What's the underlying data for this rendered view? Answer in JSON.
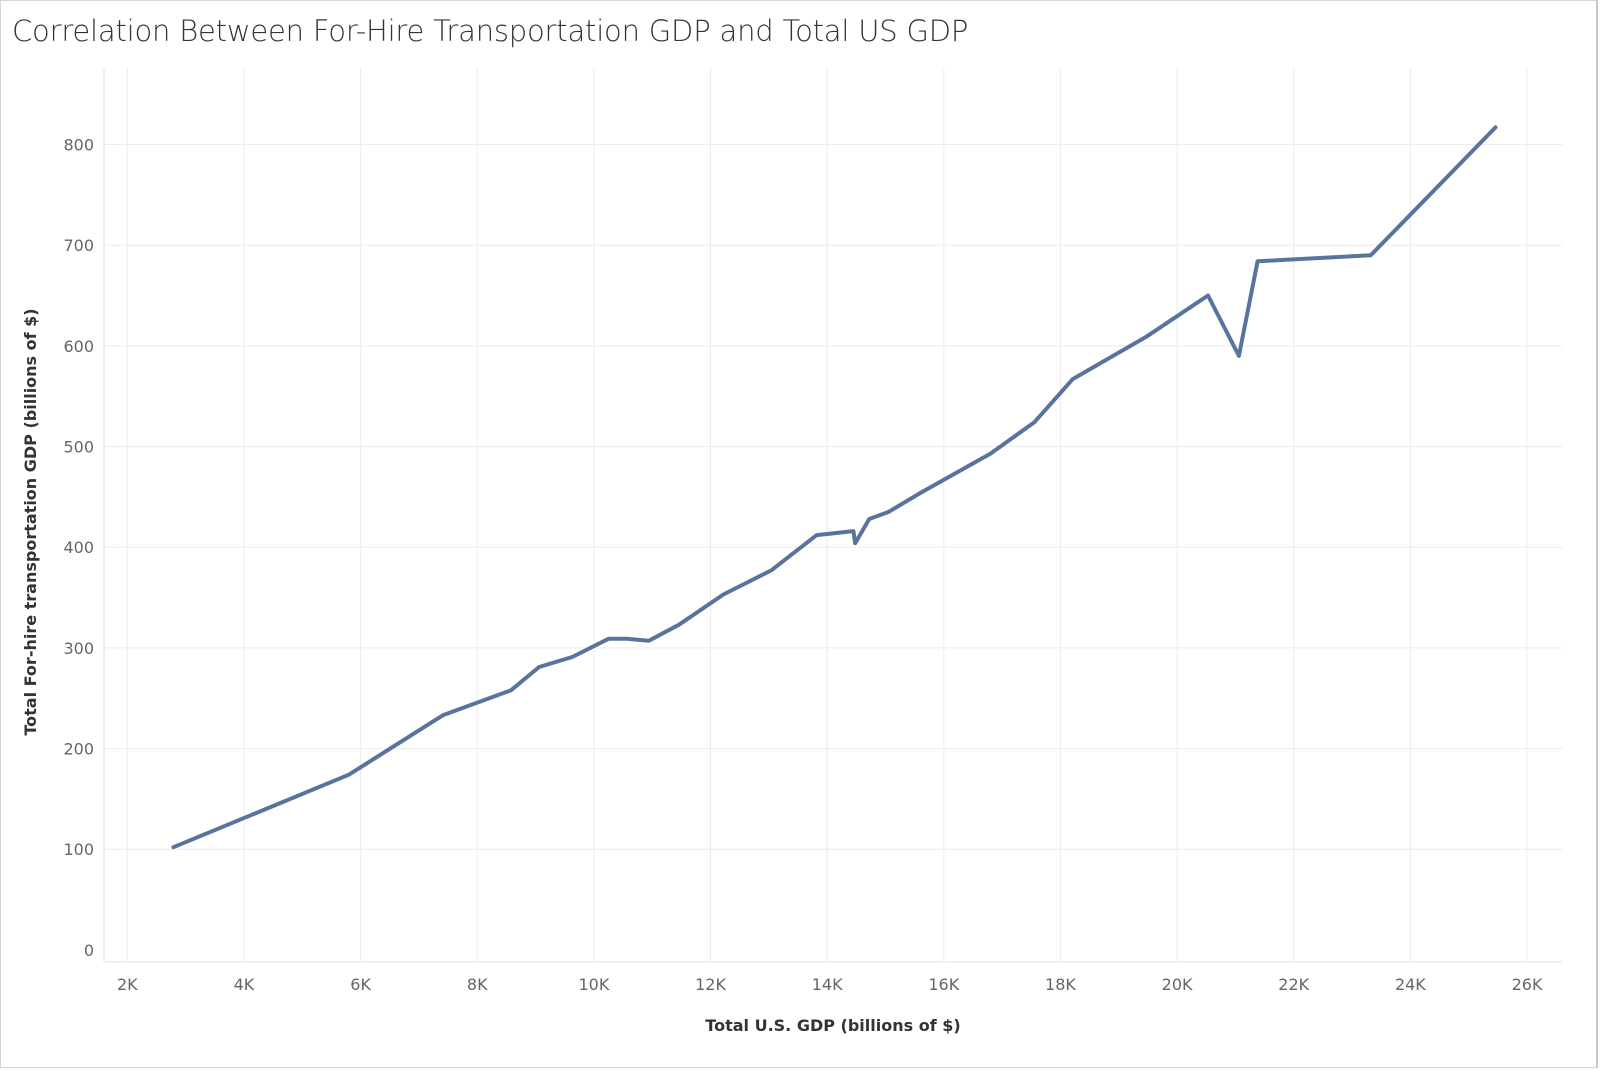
{
  "chart_data": {
    "type": "line",
    "title": "Correlation Between For-Hire Transportation GDP and Total US GDP",
    "xlabel": "Total U.S. GDP (billions of $)",
    "ylabel": "Total For-hire transportation GDP (billions of $)",
    "xlim": [
      1600,
      26600
    ],
    "ylim": [
      -12,
      876
    ],
    "x_ticks": [
      2000,
      4000,
      6000,
      8000,
      10000,
      12000,
      14000,
      16000,
      18000,
      20000,
      22000,
      24000,
      26000
    ],
    "x_tick_labels": [
      "2K",
      "4K",
      "6K",
      "8K",
      "10K",
      "12K",
      "14K",
      "16K",
      "18K",
      "20K",
      "22K",
      "24K",
      "26K"
    ],
    "y_ticks": [
      0,
      100,
      200,
      300,
      400,
      500,
      600,
      700,
      800
    ],
    "y_tick_labels": [
      "0",
      "100",
      "200",
      "300",
      "400",
      "500",
      "600",
      "700",
      "800"
    ],
    "grid": true,
    "line_color": "#58739d",
    "series": [
      {
        "x": [
          2790,
          5800,
          7410,
          8580,
          9060,
          9630,
          10250,
          10580,
          10940,
          11460,
          12220,
          13040,
          13820,
          14450,
          14480,
          14720,
          15050,
          15600,
          16800,
          17550,
          18210,
          19470,
          20530,
          21060,
          21380,
          23320,
          25460
        ],
        "y": [
          102,
          174,
          233,
          258,
          281,
          291,
          309,
          309,
          307,
          323,
          353,
          377,
          412,
          416,
          404,
          428,
          435,
          454,
          493,
          524,
          567,
          609,
          650,
          590,
          684,
          690,
          817
        ]
      }
    ]
  }
}
